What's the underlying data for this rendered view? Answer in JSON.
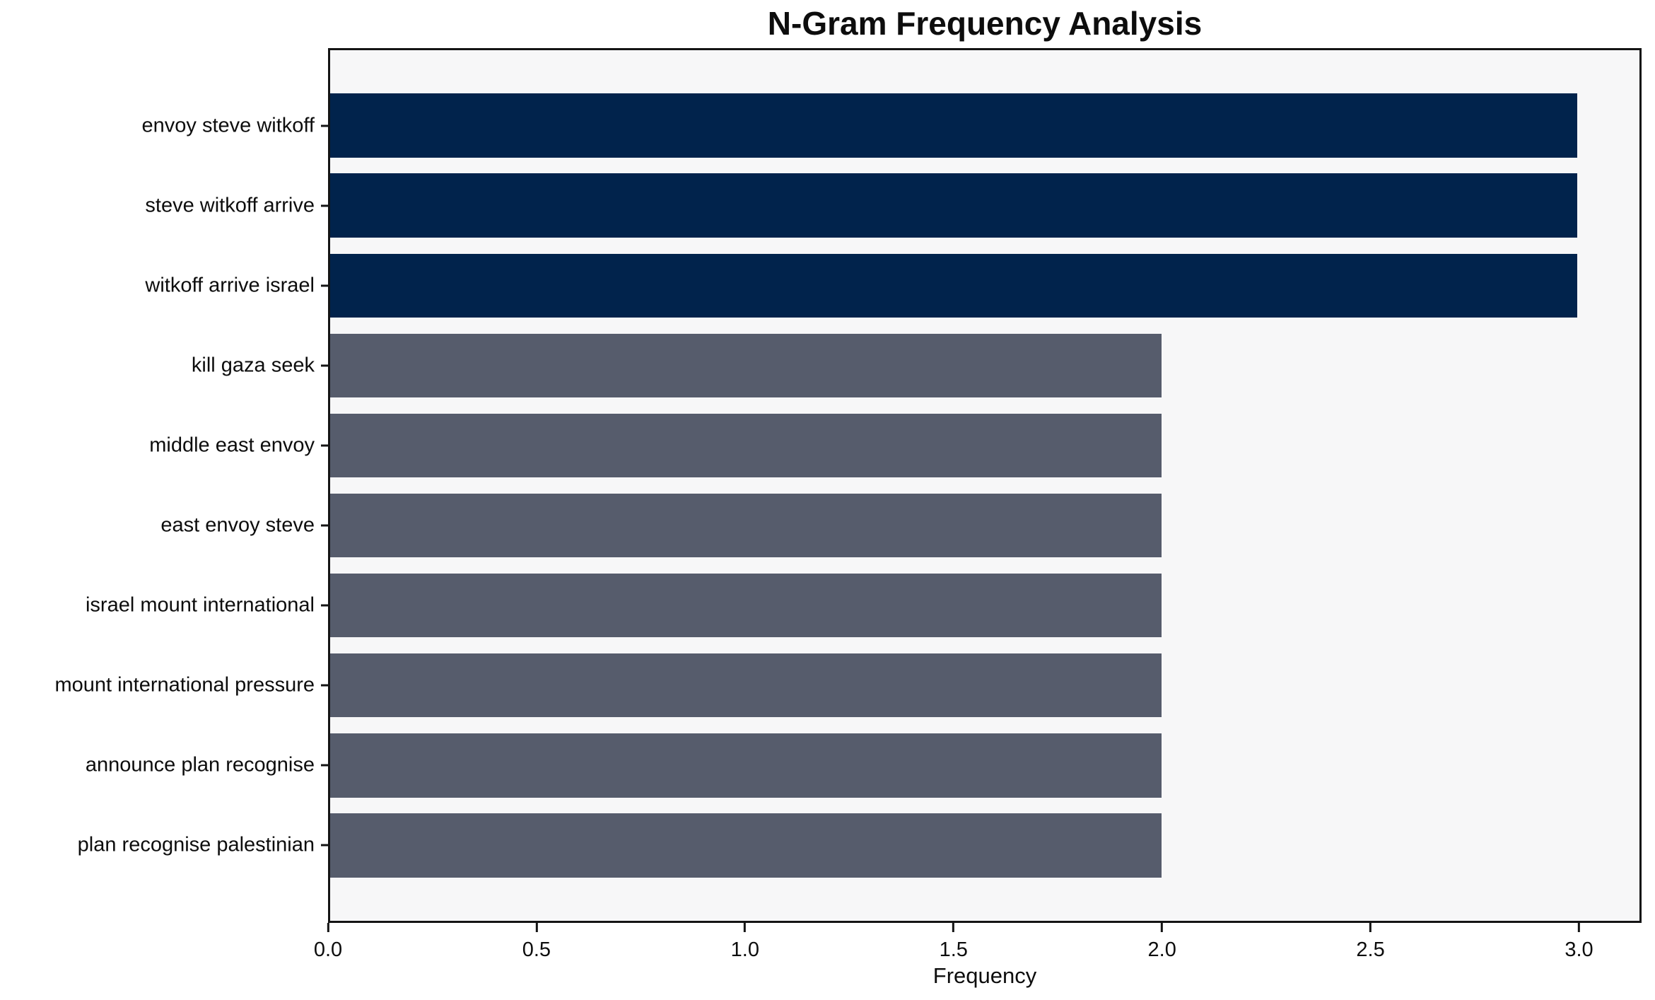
{
  "chart_data": {
    "type": "bar",
    "orientation": "horizontal",
    "title": "N-Gram Frequency Analysis",
    "xlabel": "Frequency",
    "ylabel": "",
    "categories": [
      "envoy steve witkoff",
      "steve witkoff arrive",
      "witkoff arrive israel",
      "kill gaza seek",
      "middle east envoy",
      "east envoy steve",
      "israel mount international",
      "mount international pressure",
      "announce plan recognise",
      "plan recognise palestinian"
    ],
    "values": [
      3,
      3,
      3,
      2,
      2,
      2,
      2,
      2,
      2,
      2
    ],
    "bar_colors": [
      "#01234c",
      "#01234c",
      "#01234c",
      "#565c6c",
      "#565c6c",
      "#565c6c",
      "#565c6c",
      "#565c6c",
      "#565c6c",
      "#565c6c"
    ],
    "xlim": [
      0,
      3.15
    ],
    "xticks": [
      0.0,
      0.5,
      1.0,
      1.5,
      2.0,
      2.5,
      3.0
    ],
    "xtick_labels": [
      "0.0",
      "0.5",
      "1.0",
      "1.5",
      "2.0",
      "2.5",
      "3.0"
    ],
    "grid": false,
    "legend": null,
    "colors": {
      "highlight_bar": "#01234c",
      "default_bar": "#565c6c",
      "plot_background": "#f7f7f8",
      "figure_background": "#ffffff",
      "axis": "#141414",
      "text": "#0d0d0d"
    }
  }
}
